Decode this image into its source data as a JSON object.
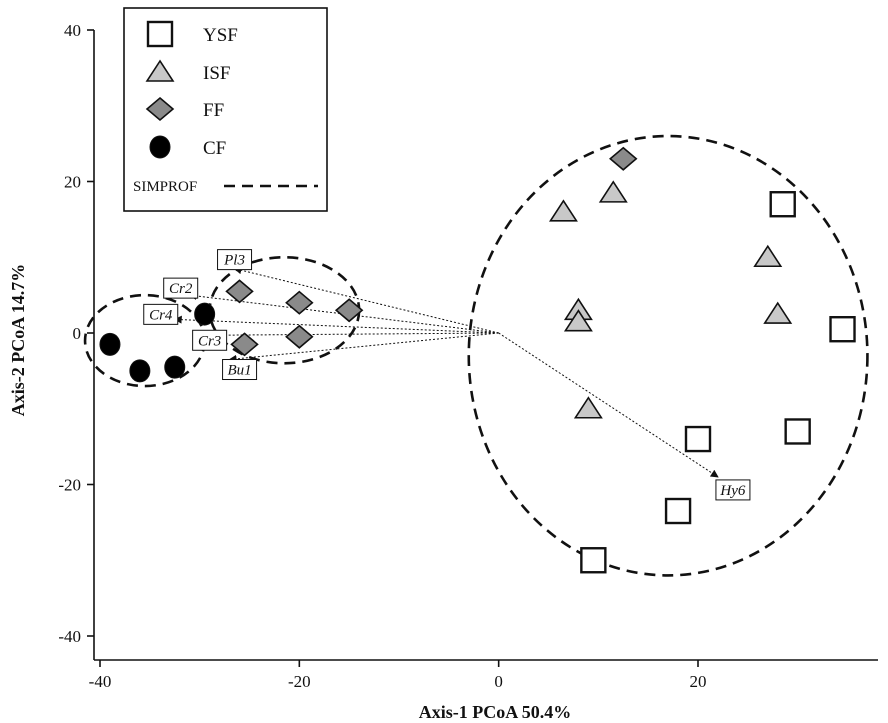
{
  "chart_data": {
    "type": "scatter",
    "title": "",
    "xlabel": "Axis-1 PCoA 50.4%",
    "ylabel": "Axis-2 PCoA 14.7%",
    "xlim": [
      -41,
      38
    ],
    "ylim": [
      -40,
      40
    ],
    "xticks": [
      -40,
      -20,
      0,
      20,
      40
    ],
    "yticks": [
      -40,
      -20,
      0,
      20,
      40
    ],
    "legend_position": "top-left",
    "series": [
      {
        "name": "YSF",
        "marker": "square",
        "color": "#ffffff",
        "points": [
          [
            28.5,
            17
          ],
          [
            34.5,
            0.5
          ],
          [
            30,
            -13
          ],
          [
            20,
            -14
          ],
          [
            18,
            -23.5
          ],
          [
            9.5,
            -30
          ]
        ]
      },
      {
        "name": "ISF",
        "marker": "triangle",
        "color": "#c8c8c8",
        "points": [
          [
            6.5,
            16
          ],
          [
            11.5,
            18.5
          ],
          [
            27,
            10
          ],
          [
            28,
            2.5
          ],
          [
            8,
            3
          ],
          [
            8,
            1.5
          ],
          [
            9,
            -10
          ]
        ]
      },
      {
        "name": "FF",
        "marker": "diamond",
        "color": "#8a8a8a",
        "points": [
          [
            12.5,
            23
          ],
          [
            -26,
            5.5
          ],
          [
            -20,
            4
          ],
          [
            -15,
            3
          ],
          [
            -20,
            -0.5
          ],
          [
            -25.5,
            -1.5
          ]
        ]
      },
      {
        "name": "CF",
        "marker": "circle",
        "color": "#000000",
        "points": [
          [
            -39,
            -1.5
          ],
          [
            -36,
            -5
          ],
          [
            -32.5,
            -4.5
          ],
          [
            -29.5,
            2.5
          ]
        ]
      }
    ],
    "simprof": {
      "label": "SIMPROF",
      "clusters": [
        {
          "cx": -35.5,
          "cy": -1,
          "rx": 6,
          "ry": 6
        },
        {
          "cx": -21.5,
          "cy": 3,
          "rx": 7.5,
          "ry": 7
        },
        {
          "cx": 17,
          "cy": -3,
          "rx": 20,
          "ry": 29
        }
      ]
    },
    "vectors": [
      {
        "label": "Pl3",
        "x": -26.5,
        "y": 8.5
      },
      {
        "label": "Cr2",
        "x": -31,
        "y": 5
      },
      {
        "label": "Cr4",
        "x": -32.5,
        "y": 1.8
      },
      {
        "label": "Cr3",
        "x": -29,
        "y": -0.3
      },
      {
        "label": "Bu1",
        "x": -27,
        "y": -3.5
      },
      {
        "label": "Hy6",
        "x": 22,
        "y": -19
      }
    ]
  }
}
